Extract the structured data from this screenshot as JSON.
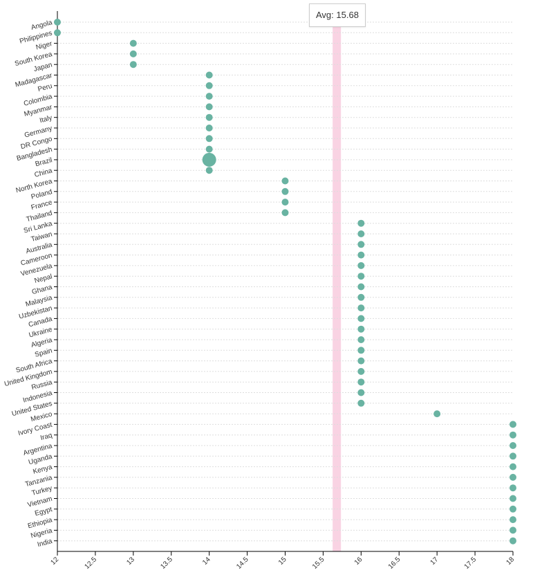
{
  "chart_data": {
    "type": "scatter",
    "xlim": [
      12,
      18
    ],
    "x_ticks": [
      "12",
      "12.5",
      "13",
      "13.5",
      "14",
      "14.5",
      "15",
      "15.5",
      "16",
      "16.5",
      "17",
      "17.5",
      "18"
    ],
    "average": {
      "label": "Avg: 15.68",
      "value": 15.68
    },
    "grid": true,
    "colors": {
      "point": "#69b3a2",
      "average_band": "#f9d3e3",
      "grid": "#dddddd",
      "axis": "#000000"
    },
    "highlighted_category": "Brazil",
    "points": [
      {
        "country": "Angola",
        "value": 12
      },
      {
        "country": "Philippines",
        "value": 12
      },
      {
        "country": "Niger",
        "value": 13
      },
      {
        "country": "South Korea",
        "value": 13
      },
      {
        "country": "Japan",
        "value": 13
      },
      {
        "country": "Madagascar",
        "value": 14
      },
      {
        "country": "Peru",
        "value": 14
      },
      {
        "country": "Colombia",
        "value": 14
      },
      {
        "country": "Myanmar",
        "value": 14
      },
      {
        "country": "Italy",
        "value": 14
      },
      {
        "country": "Germany",
        "value": 14
      },
      {
        "country": "DR Congo",
        "value": 14
      },
      {
        "country": "Bangladesh",
        "value": 14
      },
      {
        "country": "Brazil",
        "value": 14
      },
      {
        "country": "China",
        "value": 14
      },
      {
        "country": "North Korea",
        "value": 15
      },
      {
        "country": "Poland",
        "value": 15
      },
      {
        "country": "France",
        "value": 15
      },
      {
        "country": "Thailand",
        "value": 15
      },
      {
        "country": "Sri Lanka",
        "value": 16
      },
      {
        "country": "Taiwan",
        "value": 16
      },
      {
        "country": "Australia",
        "value": 16
      },
      {
        "country": "Cameroon",
        "value": 16
      },
      {
        "country": "Venezuela",
        "value": 16
      },
      {
        "country": "Nepal",
        "value": 16
      },
      {
        "country": "Ghana",
        "value": 16
      },
      {
        "country": "Malaysia",
        "value": 16
      },
      {
        "country": "Uzbekistan",
        "value": 16
      },
      {
        "country": "Canada",
        "value": 16
      },
      {
        "country": "Ukraine",
        "value": 16
      },
      {
        "country": "Algeria",
        "value": 16
      },
      {
        "country": "Spain",
        "value": 16
      },
      {
        "country": "South Africa",
        "value": 16
      },
      {
        "country": "United Kingdom",
        "value": 16
      },
      {
        "country": "Russia",
        "value": 16
      },
      {
        "country": "Indonesia",
        "value": 16
      },
      {
        "country": "United States",
        "value": 16
      },
      {
        "country": "Mexico",
        "value": 17
      },
      {
        "country": "Ivory Coast",
        "value": 18
      },
      {
        "country": "Iraq",
        "value": 18
      },
      {
        "country": "Argentina",
        "value": 18
      },
      {
        "country": "Uganda",
        "value": 18
      },
      {
        "country": "Kenya",
        "value": 18
      },
      {
        "country": "Tanzania",
        "value": 18
      },
      {
        "country": "Turkey",
        "value": 18
      },
      {
        "country": "Vietnam",
        "value": 18
      },
      {
        "country": "Egypt",
        "value": 18
      },
      {
        "country": "Ethiopia",
        "value": 18
      },
      {
        "country": "Nigeria",
        "value": 18
      },
      {
        "country": "India",
        "value": 18
      }
    ]
  }
}
